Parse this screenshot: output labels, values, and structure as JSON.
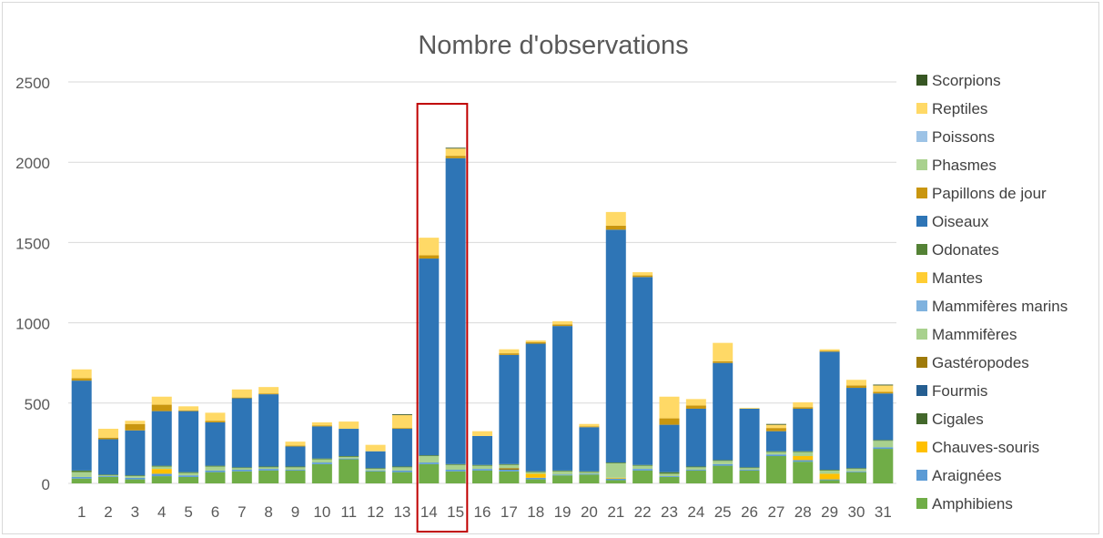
{
  "chart_data": {
    "type": "bar",
    "stacked": true,
    "title": "Nombre d'observations",
    "xlabel": "",
    "ylabel": "",
    "ylim": [
      0,
      2500
    ],
    "yticks": [
      0,
      500,
      1000,
      1500,
      2000,
      2500
    ],
    "grid": true,
    "legend_position": "right",
    "categories": [
      "1",
      "2",
      "3",
      "4",
      "5",
      "6",
      "7",
      "8",
      "9",
      "10",
      "11",
      "12",
      "13",
      "14",
      "15",
      "16",
      "17",
      "18",
      "19",
      "20",
      "21",
      "22",
      "23",
      "24",
      "25",
      "26",
      "27",
      "28",
      "29",
      "30",
      "31"
    ],
    "series": [
      {
        "name": "Amphibiens",
        "color": "#70ad47",
        "values": [
          30,
          40,
          25,
          45,
          40,
          70,
          75,
          80,
          80,
          120,
          150,
          75,
          70,
          120,
          75,
          80,
          75,
          25,
          50,
          55,
          20,
          80,
          40,
          80,
          110,
          80,
          170,
          135,
          20,
          70,
          215
        ]
      },
      {
        "name": "Araignées",
        "color": "#5b9bd5",
        "values": [
          10,
          5,
          10,
          15,
          10,
          10,
          10,
          10,
          5,
          10,
          5,
          5,
          10,
          10,
          10,
          10,
          10,
          10,
          5,
          5,
          10,
          10,
          5,
          5,
          10,
          5,
          10,
          10,
          5,
          5,
          10
        ]
      },
      {
        "name": "Chauves-souris",
        "color": "#ffc000",
        "values": [
          0,
          0,
          0,
          30,
          0,
          0,
          0,
          0,
          0,
          0,
          0,
          0,
          0,
          0,
          0,
          0,
          0,
          25,
          0,
          0,
          5,
          0,
          0,
          0,
          0,
          0,
          0,
          25,
          35,
          0,
          0
        ]
      },
      {
        "name": "Cigales",
        "color": "#43682b",
        "values": [
          0,
          0,
          0,
          0,
          0,
          0,
          0,
          0,
          0,
          0,
          0,
          0,
          0,
          0,
          0,
          0,
          0,
          0,
          0,
          0,
          0,
          0,
          0,
          0,
          0,
          0,
          0,
          0,
          0,
          0,
          0
        ]
      },
      {
        "name": "Fourmis",
        "color": "#255e91",
        "values": [
          0,
          0,
          0,
          0,
          0,
          0,
          0,
          0,
          0,
          0,
          0,
          0,
          0,
          0,
          0,
          0,
          0,
          0,
          0,
          0,
          0,
          0,
          0,
          0,
          0,
          0,
          0,
          0,
          0,
          0,
          0
        ]
      },
      {
        "name": "Gastéropodes",
        "color": "#9e7a0a",
        "values": [
          0,
          0,
          0,
          0,
          0,
          0,
          0,
          0,
          0,
          0,
          0,
          0,
          0,
          0,
          0,
          0,
          10,
          0,
          0,
          0,
          0,
          0,
          0,
          0,
          0,
          0,
          0,
          0,
          0,
          0,
          0
        ]
      },
      {
        "name": "Mammifères",
        "color": "#a9d18e",
        "values": [
          30,
          5,
          10,
          15,
          15,
          25,
          10,
          10,
          15,
          20,
          10,
          10,
          20,
          40,
          30,
          20,
          20,
          10,
          20,
          10,
          90,
          20,
          15,
          15,
          20,
          10,
          15,
          25,
          20,
          15,
          40
        ]
      },
      {
        "name": "Mammifères marins",
        "color": "#7fb2de",
        "values": [
          0,
          0,
          0,
          0,
          0,
          0,
          0,
          0,
          0,
          0,
          0,
          0,
          0,
          0,
          0,
          0,
          0,
          0,
          0,
          0,
          0,
          0,
          0,
          0,
          0,
          0,
          0,
          0,
          0,
          0,
          0
        ]
      },
      {
        "name": "Mantes",
        "color": "#ffcd33",
        "values": [
          0,
          0,
          0,
          0,
          0,
          0,
          0,
          0,
          0,
          0,
          0,
          0,
          0,
          0,
          0,
          0,
          0,
          0,
          0,
          0,
          0,
          0,
          0,
          0,
          0,
          0,
          0,
          0,
          0,
          0,
          0
        ]
      },
      {
        "name": "Odonates",
        "color": "#548235",
        "values": [
          10,
          5,
          5,
          5,
          5,
          5,
          5,
          5,
          5,
          5,
          5,
          5,
          5,
          5,
          5,
          5,
          5,
          5,
          5,
          5,
          5,
          5,
          10,
          5,
          5,
          5,
          5,
          5,
          5,
          5,
          5
        ]
      },
      {
        "name": "Oiseaux",
        "color": "#2e75b6",
        "values": [
          560,
          220,
          280,
          340,
          380,
          270,
          430,
          450,
          125,
          200,
          170,
          105,
          235,
          1225,
          1905,
          180,
          680,
          795,
          900,
          275,
          1450,
          1170,
          295,
          360,
          605,
          365,
          125,
          265,
          735,
          500,
          290
        ]
      },
      {
        "name": "Papillons de jour",
        "color": "#c9960f",
        "values": [
          15,
          10,
          40,
          40,
          5,
          10,
          5,
          5,
          5,
          5,
          0,
          0,
          5,
          20,
          15,
          0,
          10,
          10,
          10,
          5,
          25,
          10,
          40,
          20,
          10,
          0,
          20,
          10,
          5,
          15,
          10
        ]
      },
      {
        "name": "Phasmes",
        "color": "#a9d18e",
        "values": [
          0,
          0,
          0,
          0,
          0,
          0,
          0,
          0,
          0,
          0,
          0,
          0,
          0,
          0,
          0,
          0,
          0,
          0,
          0,
          0,
          0,
          0,
          0,
          0,
          0,
          0,
          0,
          0,
          0,
          0,
          0
        ]
      },
      {
        "name": "Poissons",
        "color": "#9dc3e6",
        "values": [
          0,
          0,
          0,
          0,
          0,
          0,
          0,
          0,
          0,
          0,
          0,
          0,
          0,
          0,
          0,
          0,
          0,
          0,
          0,
          0,
          0,
          0,
          0,
          0,
          0,
          0,
          0,
          0,
          0,
          0,
          0
        ]
      },
      {
        "name": "Reptiles",
        "color": "#ffd966",
        "values": [
          55,
          55,
          20,
          50,
          25,
          50,
          50,
          40,
          25,
          20,
          45,
          40,
          80,
          110,
          45,
          30,
          25,
          10,
          20,
          15,
          85,
          20,
          135,
          40,
          115,
          5,
          20,
          30,
          10,
          35,
          40
        ]
      },
      {
        "name": "Scorpions",
        "color": "#375623",
        "values": [
          0,
          0,
          0,
          0,
          0,
          0,
          0,
          0,
          0,
          0,
          0,
          0,
          5,
          0,
          5,
          0,
          0,
          0,
          0,
          0,
          0,
          0,
          0,
          0,
          0,
          0,
          5,
          0,
          0,
          0,
          5
        ]
      }
    ],
    "annotation": {
      "type": "highlight-box",
      "categories": [
        "14",
        "15"
      ],
      "color": "#c00000"
    }
  }
}
